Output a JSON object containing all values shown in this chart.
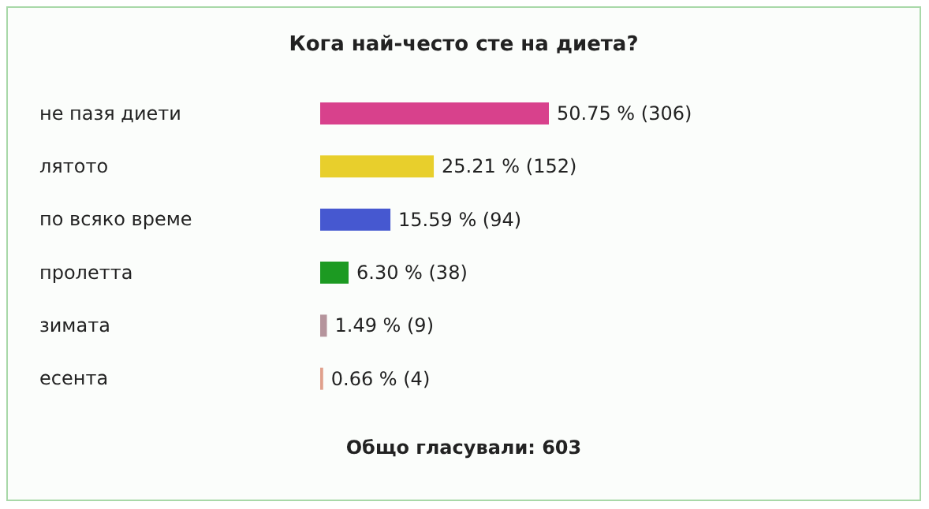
{
  "chart_data": {
    "type": "bar",
    "orientation": "horizontal",
    "title": "Кога най-често сте на диета?",
    "categories": [
      "не пазя диети",
      "лятото",
      "по всяко време",
      "пролетта",
      "зимата",
      "есента"
    ],
    "values": [
      50.75,
      25.21,
      15.59,
      6.3,
      1.49,
      0.66
    ],
    "colors": [
      "#d8418c",
      "#e8cf2c",
      "#4658d0",
      "#1c9a22",
      "#b5949c",
      "#e0a08c"
    ],
    "value_labels": [
      "50.75 % (306)",
      "25.21 % (152)",
      "15.59 % (94)",
      "6.30 % (38)",
      "1.49 % (9)",
      "0.66 % (4)"
    ],
    "annotations": [
      "Общо гласували: 603"
    ],
    "grid": false,
    "legend": false
  }
}
